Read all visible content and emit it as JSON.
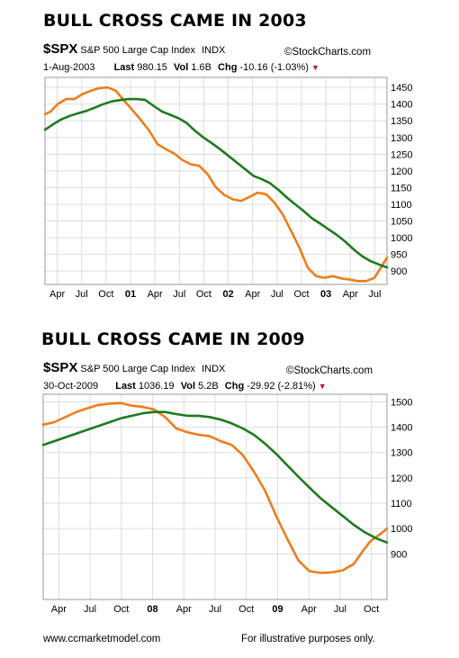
{
  "footer": {
    "left": "www.ccmarketmodel.com",
    "right": "For illustrative purposes only."
  },
  "colors": {
    "price": "#f07c1a",
    "ma": "#1e7a1e",
    "grid": "#dddddd",
    "border": "#999999",
    "down": "#c0142c"
  },
  "icons": {
    "copyright": "copyright-icon",
    "down_arrow": "down-triangle-icon"
  },
  "chart_data": [
    {
      "type": "line",
      "title": "BULL CROSS CAME IN 2003",
      "header": {
        "symbol": "$SPX",
        "name": "S&P 500 Large Cap Index",
        "exchange": "INDX",
        "source": "StockCharts.com",
        "date": "1-Aug-2003",
        "last_label": "Last",
        "last": "980.15",
        "vol_label": "Vol",
        "vol": "1.6B",
        "chg_label": "Chg",
        "chg": "-10.16 (-1.03%)"
      },
      "x_labels": [
        "Apr",
        "Jul",
        "Oct",
        "01",
        "Apr",
        "Jul",
        "Oct",
        "02",
        "Apr",
        "Jul",
        "Oct",
        "03",
        "Apr",
        "Jul"
      ],
      "x_bold": [
        false,
        false,
        false,
        true,
        false,
        false,
        false,
        true,
        false,
        false,
        false,
        true,
        false,
        false
      ],
      "y_ticks": [
        900,
        950,
        1000,
        1050,
        1100,
        1150,
        1200,
        1250,
        1300,
        1350,
        1400,
        1450
      ],
      "ylim": [
        860,
        1480
      ],
      "xlim": [
        0,
        41
      ],
      "series": [
        {
          "points": [
            [
              0,
              1370
            ],
            [
              0.7,
              1378
            ],
            [
              1.5,
              1400
            ],
            [
              2.5,
              1415
            ],
            [
              3.5,
              1415
            ],
            [
              4.5,
              1430
            ],
            [
              5.5,
              1440
            ],
            [
              6.5,
              1448
            ],
            [
              7.5,
              1450
            ],
            [
              8.5,
              1440
            ],
            [
              9.5,
              1410
            ],
            [
              10.5,
              1382
            ],
            [
              11.5,
              1352
            ],
            [
              12.5,
              1320
            ],
            [
              13.5,
              1280
            ],
            [
              14.5,
              1265
            ],
            [
              15.5,
              1252
            ],
            [
              16.5,
              1232
            ],
            [
              17.5,
              1220
            ],
            [
              18.5,
              1215
            ],
            [
              19.5,
              1190
            ],
            [
              20.5,
              1150
            ],
            [
              21.5,
              1128
            ],
            [
              22.5,
              1115
            ],
            [
              23.5,
              1110
            ],
            [
              24.5,
              1122
            ],
            [
              25.5,
              1135
            ],
            [
              26.5,
              1130
            ],
            [
              27.5,
              1105
            ],
            [
              28.5,
              1070
            ],
            [
              29.5,
              1020
            ],
            [
              30.5,
              970
            ],
            [
              31.5,
              910
            ],
            [
              32.5,
              885
            ],
            [
              33.5,
              880
            ],
            [
              34.5,
              885
            ],
            [
              35.5,
              878
            ],
            [
              36.5,
              875
            ],
            [
              37.5,
              870
            ],
            [
              38.5,
              870
            ],
            [
              39.5,
              880
            ],
            [
              40.3,
              912
            ],
            [
              41,
              940
            ]
          ]
        },
        {
          "points": [
            [
              0,
              1323
            ],
            [
              1,
              1340
            ],
            [
              2,
              1355
            ],
            [
              3,
              1365
            ],
            [
              4,
              1373
            ],
            [
              5,
              1380
            ],
            [
              6,
              1390
            ],
            [
              7,
              1400
            ],
            [
              8,
              1408
            ],
            [
              9,
              1412
            ],
            [
              10,
              1415
            ],
            [
              11,
              1415
            ],
            [
              12,
              1413
            ],
            [
              13,
              1395
            ],
            [
              14,
              1378
            ],
            [
              15,
              1368
            ],
            [
              16,
              1358
            ],
            [
              17,
              1343
            ],
            [
              18,
              1320
            ],
            [
              19,
              1300
            ],
            [
              20,
              1283
            ],
            [
              21,
              1265
            ],
            [
              22,
              1245
            ],
            [
              23,
              1225
            ],
            [
              24,
              1205
            ],
            [
              25,
              1185
            ],
            [
              26,
              1175
            ],
            [
              27,
              1163
            ],
            [
              28,
              1143
            ],
            [
              29,
              1120
            ],
            [
              30,
              1100
            ],
            [
              31,
              1080
            ],
            [
              32,
              1058
            ],
            [
              33,
              1042
            ],
            [
              34,
              1025
            ],
            [
              35,
              1008
            ],
            [
              36,
              988
            ],
            [
              37,
              965
            ],
            [
              38,
              945
            ],
            [
              39,
              930
            ],
            [
              40,
              920
            ],
            [
              41,
              911
            ]
          ]
        }
      ]
    },
    {
      "type": "line",
      "title": "BULL CROSS CAME IN 2009",
      "header": {
        "symbol": "$SPX",
        "name": "S&P 500 Large Cap Index",
        "exchange": "INDX",
        "source": "StockCharts.com",
        "date": "30-Oct-2009",
        "last_label": "Last",
        "last": "1036.19",
        "vol_label": "Vol",
        "vol": "5.2B",
        "chg_label": "Chg",
        "chg": "-29.92 (-2.81%)"
      },
      "x_labels": [
        "Apr",
        "Jul",
        "Oct",
        "08",
        "Apr",
        "Jul",
        "Oct",
        "09",
        "Apr",
        "Jul",
        "Oct"
      ],
      "x_bold": [
        false,
        false,
        false,
        true,
        false,
        false,
        false,
        true,
        false,
        false,
        false
      ],
      "y_ticks": [
        900,
        1000,
        1100,
        1200,
        1300,
        1400,
        1500
      ],
      "ylim": [
        720,
        1530
      ],
      "xlim": [
        0,
        31
      ],
      "series": [
        {
          "points": [
            [
              0,
              1410
            ],
            [
              1,
              1420
            ],
            [
              2,
              1440
            ],
            [
              3,
              1460
            ],
            [
              4,
              1475
            ],
            [
              5,
              1488
            ],
            [
              6,
              1493
            ],
            [
              7,
              1495
            ],
            [
              8,
              1485
            ],
            [
              9,
              1480
            ],
            [
              10,
              1470
            ],
            [
              11,
              1440
            ],
            [
              12,
              1395
            ],
            [
              13,
              1380
            ],
            [
              14,
              1370
            ],
            [
              15,
              1365
            ],
            [
              16,
              1345
            ],
            [
              17,
              1330
            ],
            [
              18,
              1290
            ],
            [
              19,
              1225
            ],
            [
              20,
              1150
            ],
            [
              21,
              1050
            ],
            [
              22,
              960
            ],
            [
              23,
              875
            ],
            [
              24,
              832
            ],
            [
              25,
              825
            ],
            [
              26,
              827
            ],
            [
              27,
              835
            ],
            [
              28,
              860
            ],
            [
              28.8,
              910
            ],
            [
              29.5,
              950
            ],
            [
              30.3,
              975
            ],
            [
              31,
              1000
            ]
          ]
        },
        {
          "points": [
            [
              0,
              1330
            ],
            [
              1,
              1345
            ],
            [
              2,
              1360
            ],
            [
              3,
              1375
            ],
            [
              4,
              1390
            ],
            [
              5,
              1405
            ],
            [
              6,
              1420
            ],
            [
              7,
              1435
            ],
            [
              8,
              1445
            ],
            [
              9,
              1455
            ],
            [
              10,
              1460
            ],
            [
              11,
              1460
            ],
            [
              12,
              1452
            ],
            [
              13,
              1445
            ],
            [
              14,
              1445
            ],
            [
              15,
              1440
            ],
            [
              16,
              1430
            ],
            [
              17,
              1415
            ],
            [
              18,
              1395
            ],
            [
              19,
              1370
            ],
            [
              20,
              1335
            ],
            [
              21,
              1295
            ],
            [
              22,
              1250
            ],
            [
              23,
              1205
            ],
            [
              24,
              1162
            ],
            [
              25,
              1120
            ],
            [
              26,
              1085
            ],
            [
              27,
              1050
            ],
            [
              28,
              1015
            ],
            [
              29,
              985
            ],
            [
              30,
              962
            ],
            [
              31,
              945
            ]
          ]
        }
      ]
    }
  ]
}
